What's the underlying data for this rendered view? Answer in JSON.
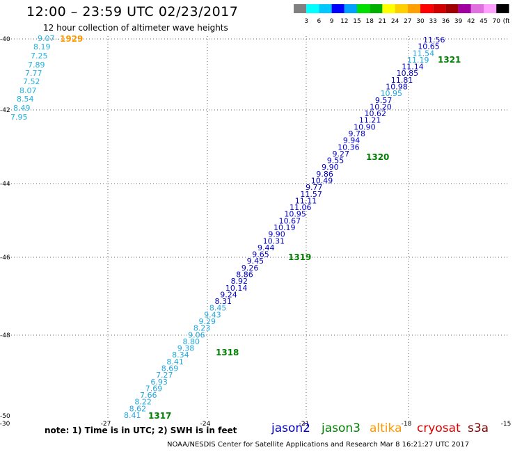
{
  "header": {
    "title": "12:00 – 23:59 UTC 02/23/2017",
    "subtitle": "12 hour collection of altimeter wave heights"
  },
  "colorbar": {
    "labels": [
      "3",
      "6",
      "9",
      "12",
      "15",
      "18",
      "21",
      "24",
      "27",
      "30",
      "33",
      "36",
      "39",
      "42",
      "45",
      "70",
      "(ft)"
    ],
    "colors": [
      "#808080",
      "#00ffff",
      "#00c8ff",
      "#0000ff",
      "#00a0ff",
      "#00e000",
      "#00b000",
      "#ffff00",
      "#ffd000",
      "#ffa000",
      "#ff0000",
      "#d00000",
      "#a00000",
      "#a000a0",
      "#e070e0",
      "#ffa0ff",
      "#000000"
    ]
  },
  "map": {
    "x_ticks": [
      "-30",
      "-27",
      "-24",
      "-21",
      "-18",
      "-15"
    ],
    "y_ticks": [
      "-40",
      "-42",
      "-44",
      "-46",
      "-48",
      "-50"
    ],
    "track_west": {
      "values": [
        "9.07",
        "8.19",
        "7.25",
        "7.89",
        "7.77",
        "7.52",
        "8.07",
        "8.54",
        "8.49",
        "7.95"
      ],
      "pass": "1929"
    },
    "track_main": {
      "values": [
        "11.56",
        "10.65",
        "11.54",
        "11.19",
        "11.14",
        "10.85",
        "11.81",
        "10.98",
        "10.95",
        "9.57",
        "10.20",
        "10.62",
        "11.21",
        "10.90",
        "9.78",
        "9.94",
        "10.36",
        "9.27",
        "9.55",
        "9.90",
        "9.86",
        "10.49",
        "9.77",
        "11.57",
        "11.11",
        "11.06",
        "10.95",
        "10.67",
        "10.19",
        "9.90",
        "10.31",
        "9.44",
        "9.65",
        "9.45",
        "9.26",
        "8.86",
        "8.92",
        "10.14",
        "9.24",
        "8.31",
        "8.45",
        "9.43",
        "9.29",
        "8.23",
        "9.06",
        "8.80",
        "9.38",
        "8.34",
        "8.41",
        "8.69",
        "7.27",
        "6.93",
        "7.69",
        "7.66",
        "8.22",
        "8.62",
        "8.41"
      ],
      "passes": [
        "1321",
        "1320",
        "1319",
        "1318",
        "1317"
      ]
    }
  },
  "note": "note: 1) Time is in UTC; 2) SWH is in feet",
  "legend": [
    {
      "label": "jason2",
      "color": "#0000c8"
    },
    {
      "label": "jason3",
      "color": "#008000"
    },
    {
      "label": "altika",
      "color": "#ff9900"
    },
    {
      "label": "cryosat",
      "color": "#e00000"
    },
    {
      "label": "s3a",
      "color": "#800000"
    }
  ],
  "credit": "NOAA/NESDIS Center for Satellite Applications and Research    Mar  8 16:21:27 UTC 2017"
}
